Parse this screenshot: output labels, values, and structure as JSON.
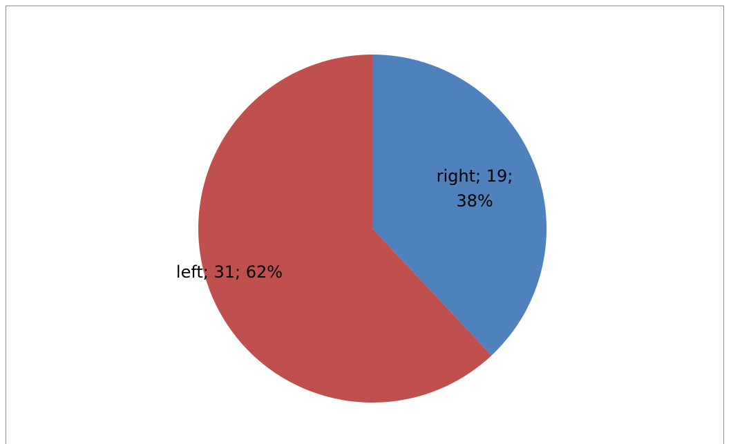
{
  "chart_data": {
    "type": "pie",
    "categories": [
      "right",
      "left"
    ],
    "values": [
      19,
      31
    ],
    "percent_labels": [
      "38%",
      "62%"
    ],
    "data_labels": [
      [
        "right; 19;",
        "38%"
      ],
      [
        "left; 31; 62%"
      ]
    ],
    "colors": [
      "#4f81bd",
      "#c0504d"
    ],
    "start_angle_deg": 0,
    "direction": "clockwise",
    "legend": "none"
  }
}
